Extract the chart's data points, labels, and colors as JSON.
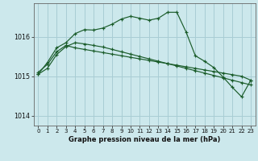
{
  "background_color": "#cce8ec",
  "plot_bg_color": "#cce8ec",
  "line_color": "#1a5c2a",
  "grid_color": "#a8cdd4",
  "xlabel": "Graphe pression niveau de la mer (hPa)",
  "ylim": [
    1013.75,
    1016.85
  ],
  "xlim": [
    -0.5,
    23.5
  ],
  "yticks": [
    1014,
    1015,
    1016
  ],
  "xticks": [
    0,
    1,
    2,
    3,
    4,
    5,
    6,
    7,
    8,
    9,
    10,
    11,
    12,
    13,
    14,
    15,
    16,
    17,
    18,
    19,
    20,
    21,
    22,
    23
  ],
  "series": [
    [
      1015.05,
      1015.2,
      1015.55,
      1015.75,
      1015.85,
      1015.82,
      1015.78,
      1015.74,
      1015.68,
      1015.62,
      1015.56,
      1015.5,
      1015.44,
      1015.38,
      1015.32,
      1015.26,
      1015.2,
      1015.14,
      1015.08,
      1015.02,
      1014.96,
      1014.9,
      1014.84,
      1014.78
    ],
    [
      1015.1,
      1015.3,
      1015.62,
      1015.78,
      1015.72,
      1015.68,
      1015.64,
      1015.6,
      1015.56,
      1015.52,
      1015.48,
      1015.44,
      1015.4,
      1015.36,
      1015.32,
      1015.28,
      1015.24,
      1015.2,
      1015.16,
      1015.12,
      1015.08,
      1015.04,
      1015.0,
      1014.9
    ],
    [
      1015.05,
      1015.35,
      1015.72,
      1015.85,
      1016.08,
      1016.18,
      1016.17,
      1016.22,
      1016.32,
      1016.45,
      1016.52,
      1016.47,
      1016.42,
      1016.47,
      1016.62,
      1016.62,
      1016.12,
      1015.52,
      1015.38,
      1015.22,
      1014.98,
      1014.72,
      1014.48,
      1014.9
    ]
  ]
}
